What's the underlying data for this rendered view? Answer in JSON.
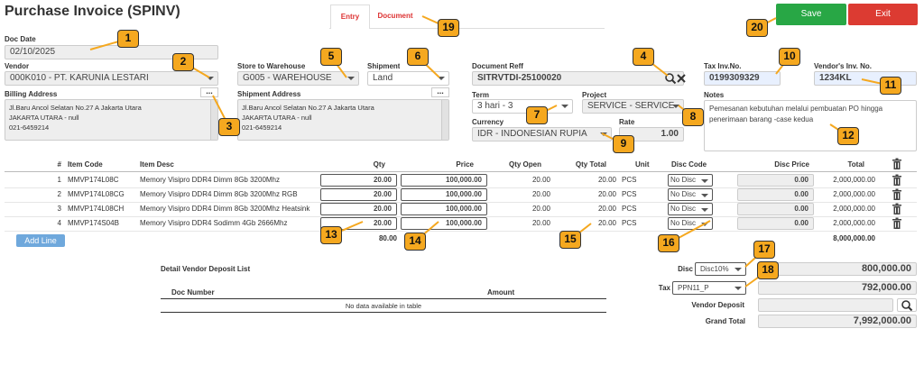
{
  "header": {
    "title": "Purchase Invoice (SPINV)",
    "tabs": [
      "Entry",
      "Document"
    ],
    "save": "Save",
    "exit": "Exit"
  },
  "form": {
    "doc_date": {
      "label": "Doc Date",
      "value": "02/10/2025"
    },
    "vendor": {
      "label": "Vendor",
      "value": "000K010 - PT. KARUNIA LESTARI"
    },
    "billing_address": {
      "label": "Billing Address",
      "button": "...",
      "lines": [
        "Jl.Baru Ancol Selatan No.27 A Jakarta Utara",
        "JAKARTA UTARA - null",
        "021-6459214"
      ]
    },
    "warehouse": {
      "label": "Store to Warehouse",
      "value": "G005 - WAREHOUSE"
    },
    "shipment": {
      "label": "Shipment",
      "value": "Land"
    },
    "shipment_address": {
      "label": "Shipment Address",
      "button": "...",
      "lines": [
        "Jl.Baru Ancol Selatan No.27 A Jakarta Utara",
        "JAKARTA UTARA - null",
        "021-6459214"
      ]
    },
    "document_reff": {
      "label": "Document Reff",
      "value": "SITRVTDI-25100020"
    },
    "term": {
      "label": "Term",
      "value": "3 hari - 3"
    },
    "project": {
      "label": "Project",
      "value": "SERVICE - SERVICE"
    },
    "currency": {
      "label": "Currency",
      "value": "IDR - INDONESIAN RUPIA"
    },
    "rate": {
      "label": "Rate",
      "value": "1.00"
    },
    "tax_inv_no": {
      "label": "Tax Inv.No.",
      "value": "0199309329"
    },
    "vendor_inv_no": {
      "label": "Vendor's Inv. No.",
      "value": "1234KL"
    },
    "notes": {
      "label": "Notes",
      "value": "Pemesanan kebutuhan melalui pembuatan PO hingga penerimaan barang -case kedua"
    }
  },
  "table": {
    "columns": [
      "#",
      "Item Code",
      "Item Desc",
      "Qty",
      "Price",
      "Qty Open",
      "Qty Total",
      "Unit",
      "Disc Code",
      "Disc Price",
      "Total"
    ],
    "rows": [
      [
        "1",
        "MMVP174L08C",
        "Memory Visipro DDR4 Dimm 8Gb 3200Mhz",
        "20.00",
        "100,000.00",
        "20.00",
        "20.00",
        "PCS",
        "No Disc",
        "0.00",
        "2,000,000.00"
      ],
      [
        "2",
        "MMVP174L08CG",
        "Memory Visipro DDR4 Dimm 8Gb 3200Mhz RGB",
        "20.00",
        "100,000.00",
        "20.00",
        "20.00",
        "PCS",
        "No Disc",
        "0.00",
        "2,000,000.00"
      ],
      [
        "3",
        "MMVP174L08CH",
        "Memory Visipro DDR4 Dimm 8Gb 3200Mhz Heatsink",
        "20.00",
        "100,000.00",
        "20.00",
        "20.00",
        "PCS",
        "No Disc",
        "0.00",
        "2,000,000.00"
      ],
      [
        "4",
        "MMVP174S04B",
        "Memory Visipro DDR4 Sodimm 4Gb 2666Mhz",
        "20.00",
        "100,000.00",
        "20.00",
        "20.00",
        "PCS",
        "No Disc",
        "0.00",
        "2,000,000.00"
      ]
    ],
    "total_qty": "80.00",
    "total_amount": "8,000,000.00",
    "add_line": "Add Line"
  },
  "deposit": {
    "title": "Detail Vendor Deposit List",
    "columns": [
      "Doc Number",
      "Amount"
    ],
    "empty": "No data available in table"
  },
  "summary": {
    "disc": {
      "label": "Disc",
      "code": "Disc10%",
      "value": "800,000.00"
    },
    "tax": {
      "label": "Tax",
      "code": "PPN11_P",
      "value": "792,000.00"
    },
    "vendor_deposit": {
      "label": "Vendor Deposit"
    },
    "grand_total": {
      "label": "Grand Total",
      "value": "7,992,000.00"
    }
  },
  "callouts": [
    1,
    2,
    3,
    4,
    5,
    6,
    7,
    8,
    9,
    10,
    11,
    12,
    13,
    14,
    15,
    16,
    17,
    18,
    19,
    20
  ]
}
